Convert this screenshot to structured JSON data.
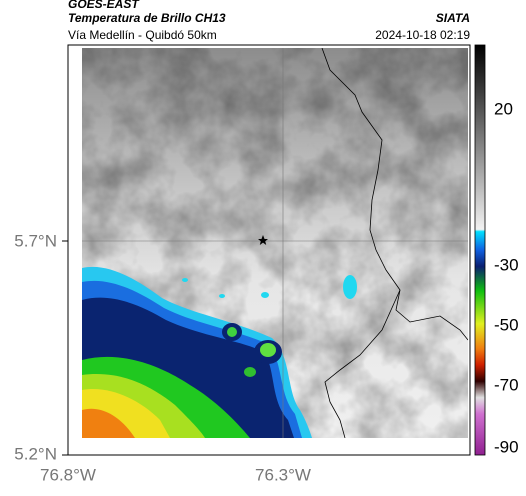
{
  "header": {
    "source": "GOES-EAST",
    "title": "Temperatura de Brillo CH13",
    "subtitle": "Vía Medellín - Quibdó 50km",
    "agency": "SIATA",
    "timestamp": "2024-10-18 02:19"
  },
  "axes": {
    "lat_labels": [
      "5.7°N",
      "5.2°N"
    ],
    "lon_labels": [
      "76.8°W",
      "76.3°W"
    ]
  },
  "colorbar": {
    "ticks": [
      20,
      -30,
      -50,
      -70,
      -90
    ]
  }
}
